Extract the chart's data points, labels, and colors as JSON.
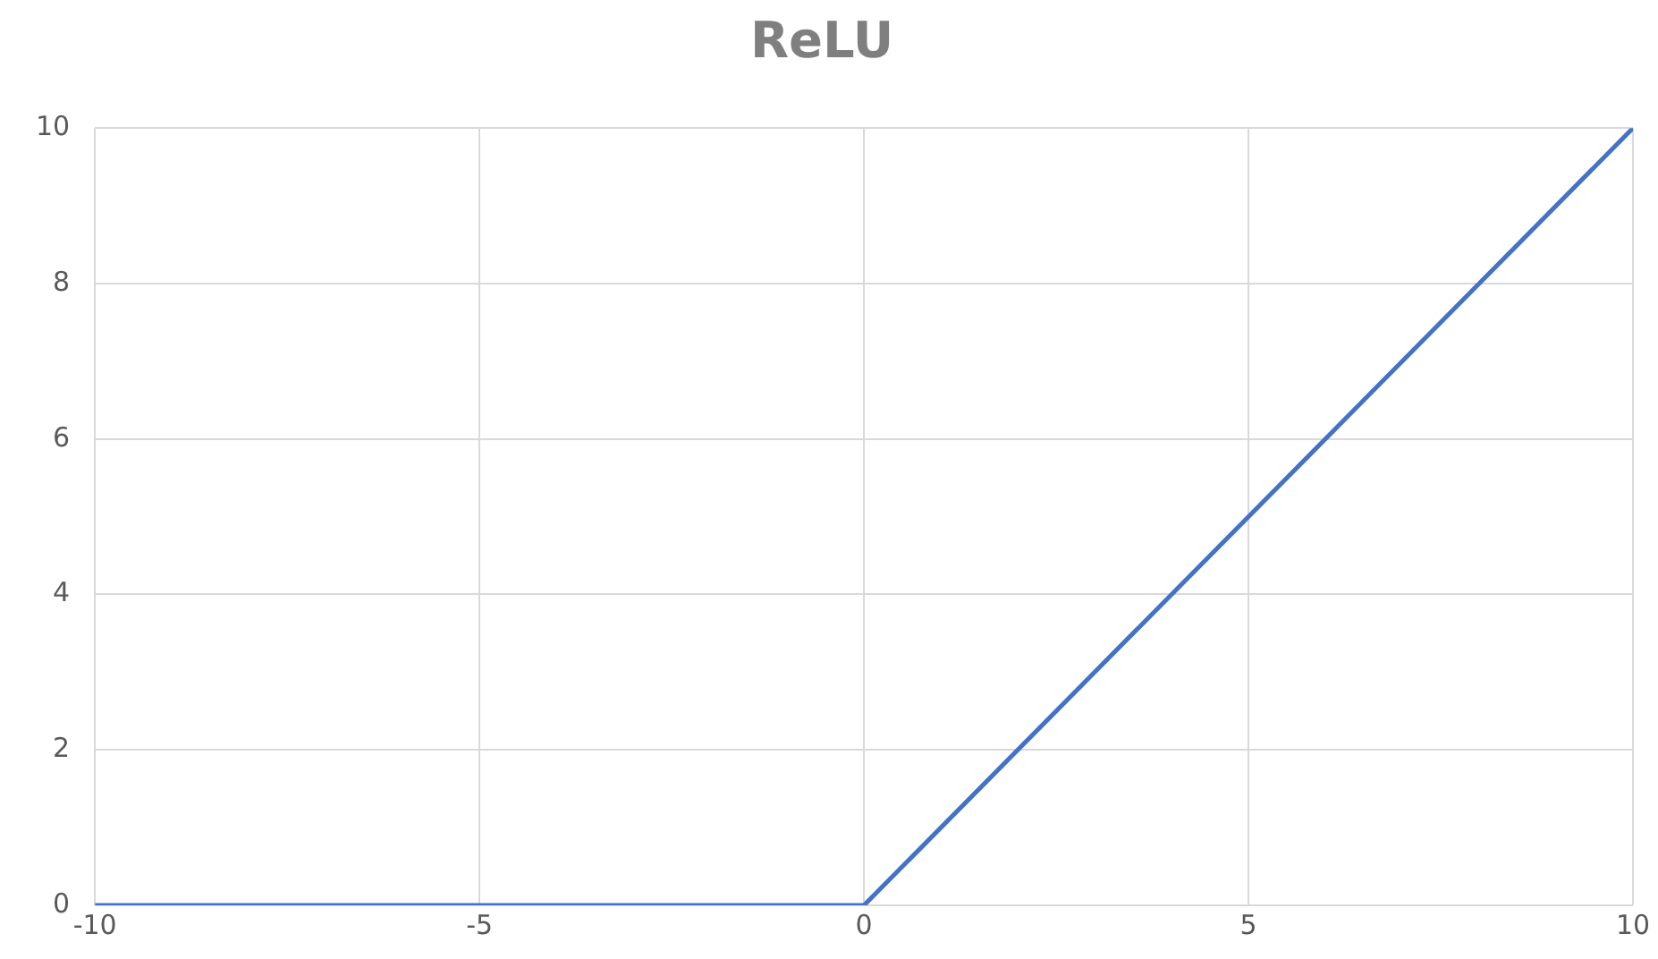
{
  "chart_data": {
    "type": "line",
    "title": "ReLU",
    "x": [
      -10,
      0,
      10
    ],
    "series": [
      {
        "color": "#4472c4",
        "values": [
          0,
          0,
          10
        ]
      }
    ],
    "xlim": [
      -10,
      10
    ],
    "xticks": [
      -10,
      -5,
      0,
      5,
      10
    ],
    "ylim": [
      0,
      10
    ],
    "yticks": [
      0,
      2,
      4,
      6,
      8,
      10
    ],
    "grid": true,
    "legend": false,
    "marker": "none",
    "line_style": "solid"
  }
}
